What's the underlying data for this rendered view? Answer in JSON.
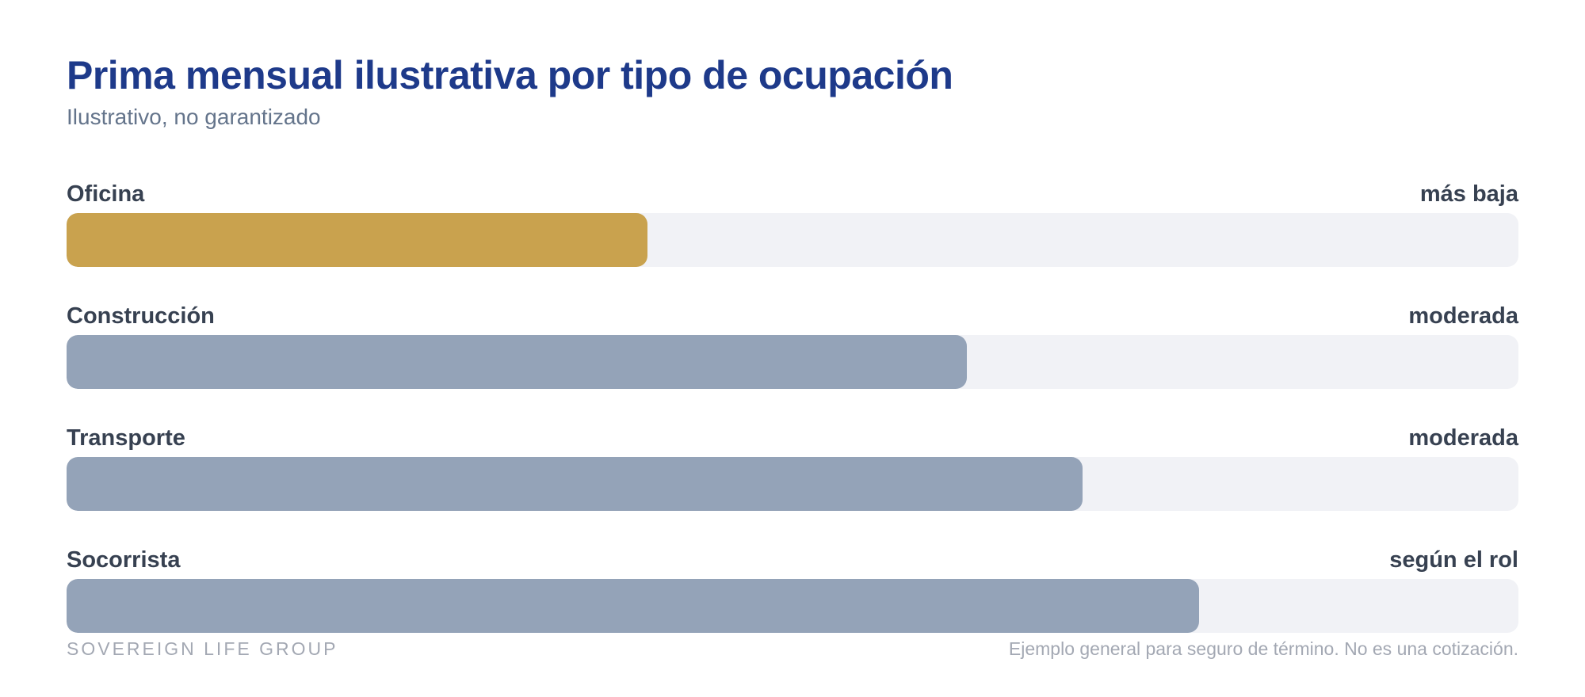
{
  "header": {
    "title": "Prima mensual ilustrativa por tipo de ocupación",
    "subtitle": "Ilustrativo, no garantizado"
  },
  "chart_data": {
    "type": "bar",
    "orientation": "horizontal",
    "categories": [
      "Oficina",
      "Construcción",
      "Transporte",
      "Socorrista"
    ],
    "values": [
      40,
      62,
      70,
      78
    ],
    "value_labels": [
      "más baja",
      "moderada",
      "moderada",
      "según el rol"
    ],
    "xlim": [
      0,
      100
    ],
    "colors": [
      "#c9a24e",
      "#94a3b8",
      "#94a3b8",
      "#94a3b8"
    ],
    "track_color": "#f1f2f6",
    "grid": false,
    "legend": "none"
  },
  "footer": {
    "brand": "SOVEREIGN LIFE GROUP",
    "disclaimer": "Ejemplo general para seguro de término. No es una cotización."
  }
}
